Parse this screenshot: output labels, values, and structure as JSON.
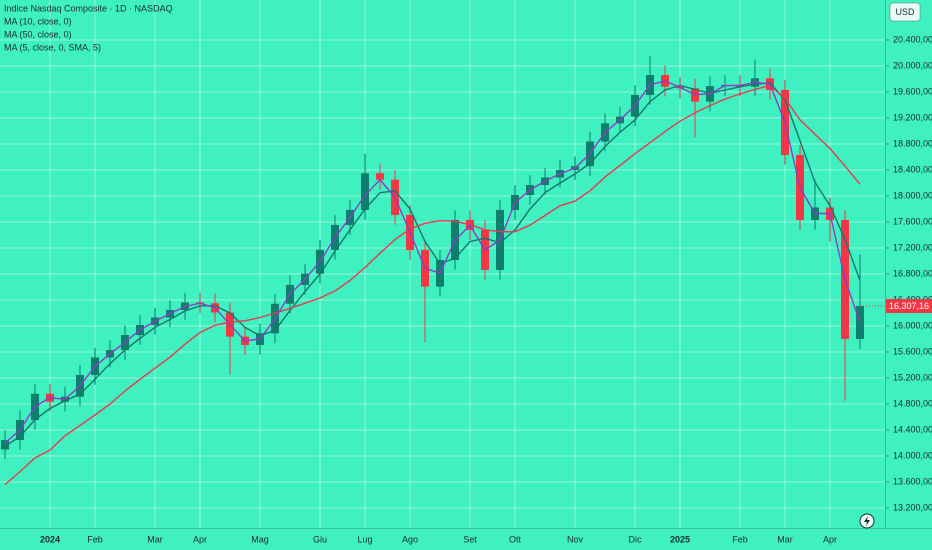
{
  "chart_data": {
    "type": "candlestick",
    "title": "Indice Nasdaq Composite · 1D · NASDAQ",
    "currency": "USD",
    "last_price_label": "16.307,16",
    "up_color": "#0d7f6c",
    "down_color": "#f23645",
    "grid": true,
    "categories": [
      null,
      null,
      null,
      "2024",
      null,
      null,
      "Feb",
      null,
      null,
      null,
      "Mar",
      null,
      null,
      "Apr",
      null,
      null,
      null,
      "Mag",
      null,
      null,
      null,
      "Giu",
      null,
      null,
      "Lug",
      null,
      null,
      "Ago",
      null,
      null,
      null,
      "Set",
      null,
      null,
      "Ott",
      null,
      null,
      null,
      "Nov",
      null,
      null,
      null,
      "Dic",
      null,
      null,
      "2025",
      null,
      null,
      null,
      "Feb",
      null,
      null,
      "Mar",
      null,
      null,
      "Apr",
      null,
      null
    ],
    "open": [
      14100,
      14246,
      14554,
      14957,
      14836,
      14913,
      15246,
      15515,
      15630,
      15861,
      16015,
      16130,
      16246,
      16362,
      16349,
      16208,
      15836,
      15708,
      15887,
      16342,
      16631,
      16804,
      17170,
      17554,
      17785,
      18350,
      18250,
      17708,
      17169,
      16605,
      17015,
      17631,
      17477,
      16862,
      17785,
      18015,
      18169,
      18284,
      18400,
      18458,
      18838,
      19118,
      19220,
      19554,
      19861,
      19681,
      19657,
      19451,
      19689,
      19708,
      19682,
      19811,
      19631,
      18631,
      17631,
      17823,
      17631,
      15800
    ],
    "high": [
      14396,
      14704,
      15107,
      15107,
      15063,
      15396,
      15665,
      15780,
      16011,
      16165,
      16280,
      16396,
      16512,
      16512,
      16499,
      16358,
      15986,
      16037,
      16492,
      16781,
      16954,
      17320,
      17704,
      17935,
      18650,
      18500,
      18400,
      17858,
      17319,
      17165,
      17781,
      17781,
      17627,
      17935,
      18165,
      18319,
      18434,
      18550,
      18608,
      18988,
      19268,
      19370,
      19704,
      20150,
      20011,
      19831,
      19807,
      19839,
      19858,
      19858,
      20100,
      19961,
      19781,
      18781,
      18250,
      17973,
      17781,
      17100
    ],
    "low": [
      13950,
      14096,
      14404,
      14686,
      14686,
      14763,
      15096,
      15365,
      15480,
      15711,
      15865,
      15980,
      16096,
      16199,
      16058,
      15250,
      15558,
      15558,
      15737,
      16192,
      16481,
      16654,
      17020,
      17404,
      17635,
      18100,
      17558,
      17019,
      15750,
      16455,
      16865,
      17327,
      16712,
      16712,
      17635,
      17865,
      18019,
      18134,
      18250,
      18308,
      18688,
      18968,
      19070,
      19404,
      19531,
      19507,
      18900,
      19301,
      19539,
      19532,
      19532,
      19481,
      18481,
      17481,
      17481,
      17300,
      14850,
      15650
    ],
    "close": [
      14246,
      14554,
      14957,
      14836,
      14913,
      15246,
      15515,
      15630,
      15861,
      16015,
      16130,
      16246,
      16362,
      16349,
      16208,
      15836,
      15708,
      15887,
      16342,
      16631,
      16804,
      17170,
      17554,
      17785,
      18350,
      18250,
      17708,
      17169,
      16605,
      17015,
      17631,
      17477,
      16862,
      17785,
      18015,
      18169,
      18284,
      18400,
      18458,
      18838,
      19118,
      19220,
      19554,
      19861,
      19681,
      19657,
      19451,
      19689,
      19708,
      19682,
      19811,
      19631,
      18631,
      17631,
      17823,
      17631,
      15800,
      16307.16
    ],
    "series": [
      {
        "name": "MA (10, close, 0)",
        "color": "#17766e",
        "values": [
          14150,
          14300,
          14560,
          14730,
          14850,
          14950,
          15180,
          15420,
          15630,
          15810,
          15980,
          16100,
          16230,
          16310,
          16310,
          16200,
          15980,
          15850,
          15930,
          16240,
          16530,
          16800,
          17150,
          17480,
          17800,
          18050,
          18080,
          17800,
          17300,
          16960,
          17040,
          17300,
          17350,
          17280,
          17480,
          17800,
          18050,
          18200,
          18340,
          18500,
          18760,
          18980,
          19170,
          19450,
          19630,
          19700,
          19640,
          19580,
          19630,
          19680,
          19720,
          19740,
          19480,
          18850,
          18210,
          17850,
          17330,
          16700
        ]
      },
      {
        "name": "MA (50, close, 0)",
        "color": "#e8394f",
        "values": [
          13560,
          13760,
          13970,
          14090,
          14310,
          14470,
          14630,
          14800,
          15000,
          15180,
          15350,
          15520,
          15720,
          15900,
          16010,
          16060,
          16080,
          16130,
          16200,
          16270,
          16350,
          16430,
          16540,
          16700,
          16900,
          17120,
          17330,
          17490,
          17580,
          17620,
          17610,
          17560,
          17480,
          17450,
          17450,
          17550,
          17700,
          17850,
          17920,
          18080,
          18290,
          18470,
          18650,
          18820,
          18990,
          19150,
          19280,
          19390,
          19490,
          19570,
          19640,
          19700,
          19500,
          19170,
          18950,
          18730,
          18460,
          18180
        ]
      },
      {
        "name": "MA (5, close, 0, SMA, 5)",
        "color": "#8b3fc4",
        "values": [
          14200,
          14400,
          14760,
          14900,
          14870,
          15080,
          15380,
          15570,
          15750,
          15940,
          16070,
          16190,
          16300,
          16350,
          16280,
          16020,
          15770,
          15800,
          16110,
          16490,
          16720,
          16990,
          17360,
          17670,
          18010,
          18250,
          17980,
          17440,
          16890,
          16810,
          17320,
          17550,
          17170,
          17320,
          17900,
          18090,
          18230,
          18340,
          18430,
          18650,
          18980,
          19170,
          19390,
          19710,
          19770,
          19670,
          19560,
          19570,
          19700,
          19700,
          19750,
          19720,
          19130,
          18130,
          17730,
          17730,
          16720,
          16050
        ]
      }
    ],
    "ylim": [
      12892,
      21015
    ],
    "yticks": [
      {
        "value": 13200,
        "label": "13.200,00"
      },
      {
        "value": 13600,
        "label": "13.600,00"
      },
      {
        "value": 14000,
        "label": "14.000,00"
      },
      {
        "value": 14400,
        "label": "14.400,00"
      },
      {
        "value": 14800,
        "label": "14.800,00"
      },
      {
        "value": 15200,
        "label": "15.200,00"
      },
      {
        "value": 15600,
        "label": "15.600,00"
      },
      {
        "value": 16000,
        "label": "16.000,00"
      },
      {
        "value": 16400,
        "label": "16.400,00"
      },
      {
        "value": 16800,
        "label": "16.800,00"
      },
      {
        "value": 17200,
        "label": "17.200,00"
      },
      {
        "value": 17600,
        "label": "17.600,00"
      },
      {
        "value": 18000,
        "label": "18.000,00"
      },
      {
        "value": 18400,
        "label": "18.400,00"
      },
      {
        "value": 18800,
        "label": "18.800,00"
      },
      {
        "value": 19200,
        "label": "19.200,00"
      },
      {
        "value": 19600,
        "label": "19.600,00"
      },
      {
        "value": 20000,
        "label": "20.000,00"
      },
      {
        "value": 20400,
        "label": "20.400,00"
      }
    ]
  }
}
